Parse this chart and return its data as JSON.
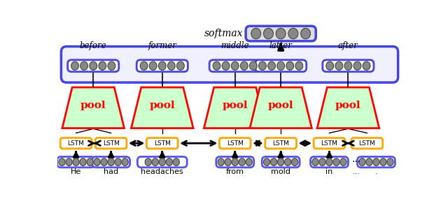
{
  "bg_color": "#ffffff",
  "fig_width": 6.4,
  "fig_height": 2.85,
  "softmax_label": "softmax",
  "pool_fill": "#ccffcc",
  "pool_edge": "#ff0000",
  "lstm_fill": "#ffffff",
  "lstm_edge": "#ffa500",
  "segment_labels": [
    "before",
    "former",
    "middle",
    "latter",
    "after"
  ],
  "segment_box_color": "#4444dd",
  "word_labels": [
    "He",
    "had",
    "headaches",
    "from",
    "mold",
    "in",
    "...",
    "."
  ],
  "word_box_color": "#5555ee",
  "big_box_color": "#4444dd",
  "softmax_box_color": "#4444dd",
  "node_fill": "#888888",
  "node_edge": "#444444"
}
